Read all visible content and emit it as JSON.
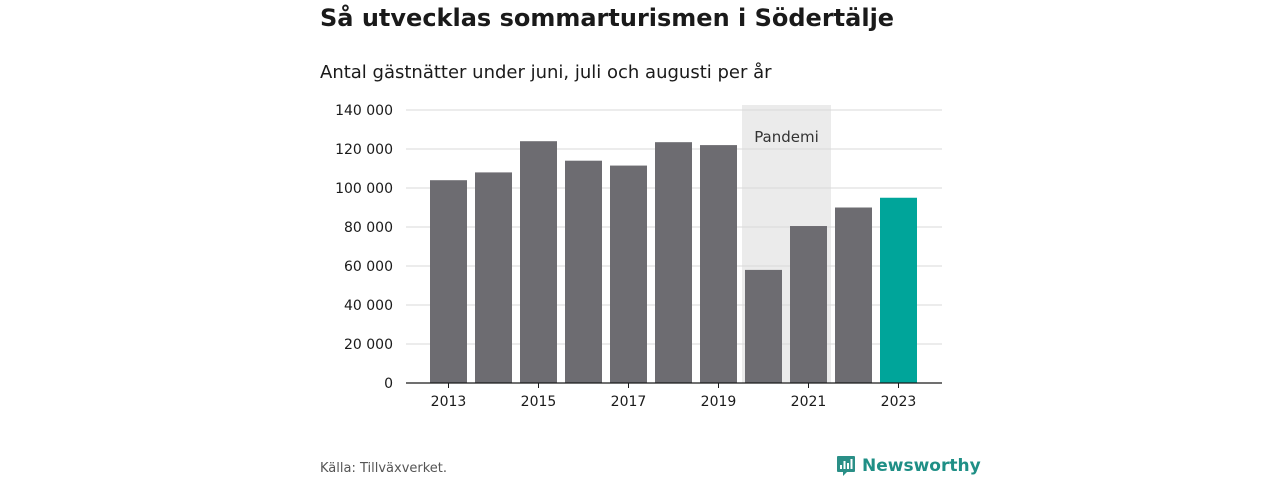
{
  "header": {
    "title": "Så utvecklas sommarturismen i Södertälje",
    "subtitle": "Antal gästnätter under juni, juli och augusti per år"
  },
  "footer": {
    "source": "Källa: Tillväxverket.",
    "brand": "Newsworthy"
  },
  "colors": {
    "bar": "#6d6c71",
    "highlight": "#00a59a",
    "band": "#ebebeb",
    "grid": "#d9d9d9",
    "brand": "#1f8f86"
  },
  "icons": {
    "brand_logo": "newsworthy-chart-icon"
  },
  "chart_data": {
    "type": "bar",
    "title": "Så utvecklas sommarturismen i Södertälje",
    "subtitle": "Antal gästnätter under juni, juli och augusti per år",
    "xlabel": "",
    "ylabel": "",
    "categories": [
      "2013",
      "2014",
      "2015",
      "2016",
      "2017",
      "2018",
      "2019",
      "2020",
      "2021",
      "2022",
      "2023"
    ],
    "values": [
      104000,
      108000,
      124000,
      114000,
      111500,
      123500,
      122000,
      58000,
      80500,
      90000,
      95000
    ],
    "highlight_category": "2023",
    "ylim": [
      0,
      140000
    ],
    "yticks": [
      0,
      20000,
      40000,
      60000,
      80000,
      100000,
      120000,
      140000
    ],
    "ytick_labels": [
      "0",
      "20 000",
      "40 000",
      "60 000",
      "80 000",
      "100 000",
      "120 000",
      "140 000"
    ],
    "xtick_labels": [
      "2013",
      "2015",
      "2017",
      "2019",
      "2021",
      "2023"
    ],
    "grid": true,
    "annotation": {
      "label": "Pandemi",
      "from": "2020",
      "to": "2021"
    }
  }
}
